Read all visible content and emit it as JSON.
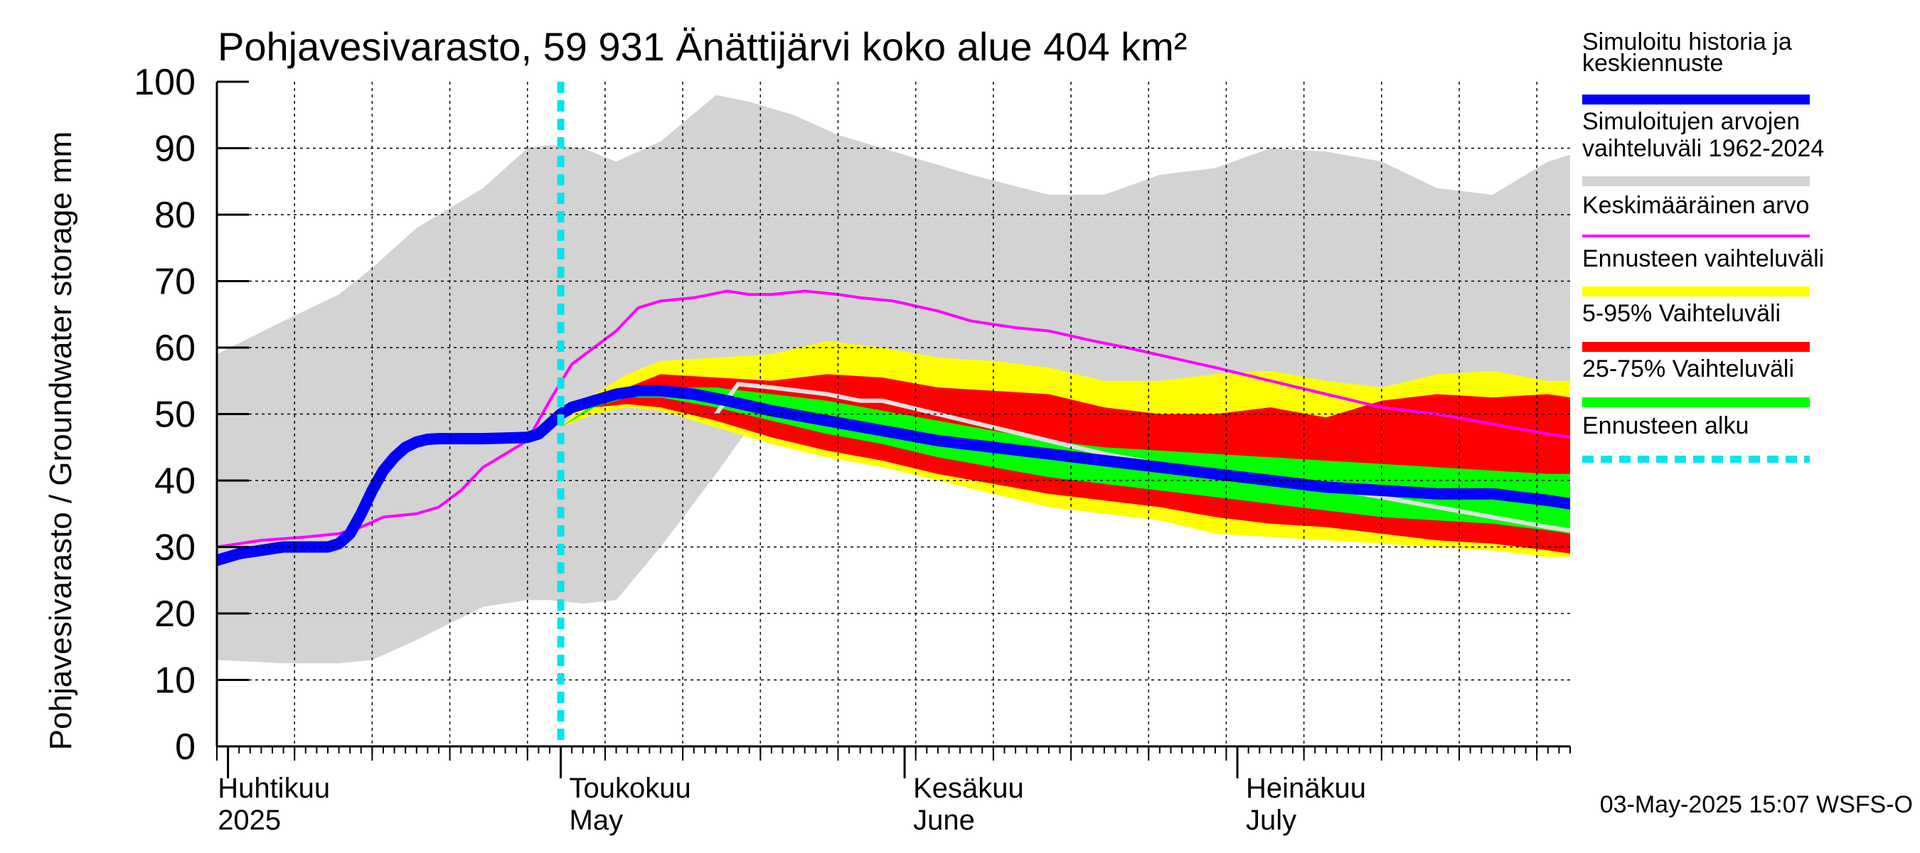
{
  "chart_data": {
    "type": "area",
    "title": "Pohjavesivarasto, 59 931 Änättijärvi koko alue 404 km²",
    "ylabel": "Pohjavesivarasto / Groundwater storage   mm",
    "ylim": [
      0,
      100
    ],
    "yticks": [
      0,
      10,
      20,
      30,
      40,
      50,
      60,
      70,
      80,
      90,
      100
    ],
    "x_unit": "day of year 2025",
    "xlim": [
      90,
      212
    ],
    "month_labels": [
      {
        "fi": "Huhtikuu",
        "en": "2025",
        "day": 92
      },
      {
        "fi": "Toukokuu",
        "en": "May",
        "day": 121
      },
      {
        "fi": "Kesäkuu",
        "en": "June",
        "day": 152
      },
      {
        "fi": "Heinäkuu",
        "en": "July",
        "day": 182
      }
    ],
    "month_boundaries": [
      91,
      121,
      152,
      182
    ],
    "forecast_start_day": 121,
    "timestamp": "03-May-2025 15:07 WSFS-O",
    "colors": {
      "history": "#0000ff",
      "range": "#d3d3d3",
      "mean": "#ff00ff",
      "forecast_range": "#ffff00",
      "p5_95": "#ff0000",
      "p25_75": "#00ff00",
      "forecast_start": "#00e5ee",
      "median_gray": "#e0e0e0"
    },
    "series": [
      {
        "name": "Simuloitujen arvojen vaihteluväli 1962-2024",
        "type": "band",
        "x": [
          90,
          96,
          101,
          104,
          108,
          114,
          118,
          120,
          123,
          126,
          130,
          135,
          138,
          142,
          146,
          150,
          154,
          158,
          165,
          170,
          175,
          180,
          185,
          190,
          195,
          200,
          205,
          210,
          212
        ],
        "upper": [
          59,
          64,
          68,
          72,
          78,
          84,
          90,
          90.5,
          90,
          88,
          91,
          98,
          97,
          95,
          92,
          90,
          88,
          86,
          83,
          83,
          86,
          87,
          90,
          89.5,
          88,
          84,
          83,
          88,
          89
        ],
        "lower": [
          13,
          12.5,
          12.5,
          13,
          16,
          21,
          22,
          22,
          21.5,
          22,
          30,
          41,
          48,
          50,
          51,
          51,
          50,
          49.5,
          48,
          47,
          46,
          45,
          44,
          43,
          42,
          40,
          38,
          36,
          35
        ]
      },
      {
        "name": "Ennusteen vaihteluväli",
        "type": "band",
        "x": [
          121,
          124,
          127,
          130,
          135,
          140,
          145,
          150,
          155,
          160,
          165,
          170,
          175,
          180,
          185,
          190,
          195,
          200,
          205,
          210,
          212
        ],
        "upper": [
          48,
          53,
          56,
          58,
          58.5,
          59,
          61,
          60,
          58.5,
          58,
          57,
          55,
          55,
          56,
          56.5,
          55,
          54,
          56,
          56.5,
          55,
          55
        ],
        "lower": [
          48,
          50,
          51,
          50.5,
          48,
          45.5,
          43.5,
          42,
          40,
          38,
          36,
          35,
          34,
          32,
          31.5,
          31,
          30.5,
          30,
          29.5,
          28.5,
          28.5
        ]
      },
      {
        "name": "5-95% Vaihteluväli",
        "type": "band",
        "x": [
          121,
          124,
          127,
          130,
          135,
          140,
          145,
          150,
          155,
          160,
          165,
          170,
          175,
          180,
          185,
          190,
          195,
          200,
          205,
          210,
          212
        ],
        "upper": [
          48,
          51.5,
          54,
          56,
          55.5,
          55,
          56,
          55.5,
          54,
          53.5,
          53,
          51,
          50,
          50,
          51,
          49.5,
          52,
          53,
          52.5,
          53,
          52.5
        ],
        "lower": [
          48,
          51,
          51.5,
          51,
          49,
          46.5,
          44.5,
          43,
          41,
          39.5,
          38,
          37,
          36,
          34.5,
          33.5,
          33,
          32,
          31,
          30.5,
          29.5,
          29
        ]
      },
      {
        "name": "25-75% Vaihteluväli",
        "type": "band",
        "x": [
          121,
          124,
          127,
          130,
          135,
          140,
          145,
          150,
          155,
          160,
          165,
          170,
          175,
          180,
          185,
          190,
          195,
          200,
          205,
          210,
          212
        ],
        "upper": [
          48,
          51.5,
          53,
          54,
          54,
          53,
          52,
          50.5,
          49,
          47.5,
          46,
          45,
          44.5,
          44,
          43.5,
          43,
          42.5,
          42,
          41.5,
          41,
          41
        ],
        "lower": [
          48,
          51,
          52.5,
          52.5,
          51,
          49,
          47,
          45.5,
          43.5,
          42,
          40.5,
          39.5,
          38.5,
          37.5,
          36.5,
          35.5,
          34.5,
          34,
          33.5,
          32.5,
          32
        ]
      },
      {
        "name": "Keskimääräinen arvo",
        "type": "line",
        "x": [
          90,
          94,
          98,
          101,
          103,
          105,
          108,
          110,
          112,
          114,
          116,
          118,
          120,
          122,
          124,
          126,
          128,
          130,
          133,
          136,
          138,
          140,
          143,
          146,
          148,
          151,
          155,
          158,
          162,
          165,
          169,
          172,
          176,
          180,
          185,
          190,
          195,
          200,
          205,
          210,
          212
        ],
        "y": [
          30,
          31,
          31.5,
          32,
          33,
          34.5,
          35,
          36,
          38.5,
          42,
          44,
          46,
          52,
          57.5,
          60,
          62.5,
          66,
          67,
          67.5,
          68.5,
          68,
          68,
          68.5,
          68,
          67.5,
          67,
          65.5,
          64,
          63,
          62.5,
          61,
          60,
          58.5,
          57,
          55,
          53,
          51,
          50,
          48.5,
          47,
          46.5
        ]
      },
      {
        "name": "Simuloitu historia ja keskiennuste",
        "type": "line",
        "x": [
          90,
          92,
          94,
          96,
          98,
          100,
          101,
          102,
          103,
          104,
          105,
          106,
          107,
          108,
          109,
          110,
          112,
          114,
          116,
          118,
          119,
          120,
          121,
          122,
          123,
          124,
          126,
          128,
          130,
          133,
          136,
          140,
          145,
          150,
          155,
          160,
          165,
          170,
          175,
          180,
          185,
          190,
          195,
          200,
          205,
          210,
          212
        ],
        "y": [
          28,
          29,
          29.5,
          30,
          30,
          30,
          30.5,
          32,
          35,
          38.5,
          41.5,
          43.5,
          45,
          45.8,
          46.2,
          46.3,
          46.3,
          46.3,
          46.4,
          46.5,
          47,
          48.5,
          50,
          51,
          51.5,
          52,
          53,
          53.5,
          53.5,
          53,
          52,
          50.5,
          49,
          47.5,
          46,
          45,
          44,
          43,
          42,
          41,
          40,
          39,
          38.5,
          38,
          38,
          37,
          36.5
        ]
      },
      {
        "name": "median_gray",
        "type": "line",
        "x": [
          135,
          137,
          140,
          145,
          148,
          150,
          155,
          160,
          165,
          170,
          175,
          180,
          185,
          190,
          195,
          200,
          205,
          210,
          212
        ],
        "y": [
          50,
          54.5,
          54,
          53,
          52,
          52,
          50,
          48,
          46,
          44,
          42.5,
          41,
          40,
          39,
          37.5,
          36,
          34.5,
          33,
          32.5
        ]
      }
    ],
    "legend": [
      {
        "label": "Simuloitu historia ja keskiennuste",
        "color": "#0000ff",
        "style": "thick"
      },
      {
        "label": "Simuloitujen arvojen vaihteluväli 1962-2024",
        "color": "#d3d3d3",
        "style": "thick"
      },
      {
        "label": "Keskimääräinen arvo",
        "color": "#ff00ff",
        "style": "thin"
      },
      {
        "label": "Ennusteen vaihteluväli",
        "color": "#ffff00",
        "style": "thick"
      },
      {
        "label": "5-95% Vaihteluväli",
        "color": "#ff0000",
        "style": "thick"
      },
      {
        "label": "25-75% Vaihteluväli",
        "color": "#00ff00",
        "style": "thick"
      },
      {
        "label": "Ennusteen alku",
        "color": "#00e5ee",
        "style": "dashed"
      }
    ]
  }
}
